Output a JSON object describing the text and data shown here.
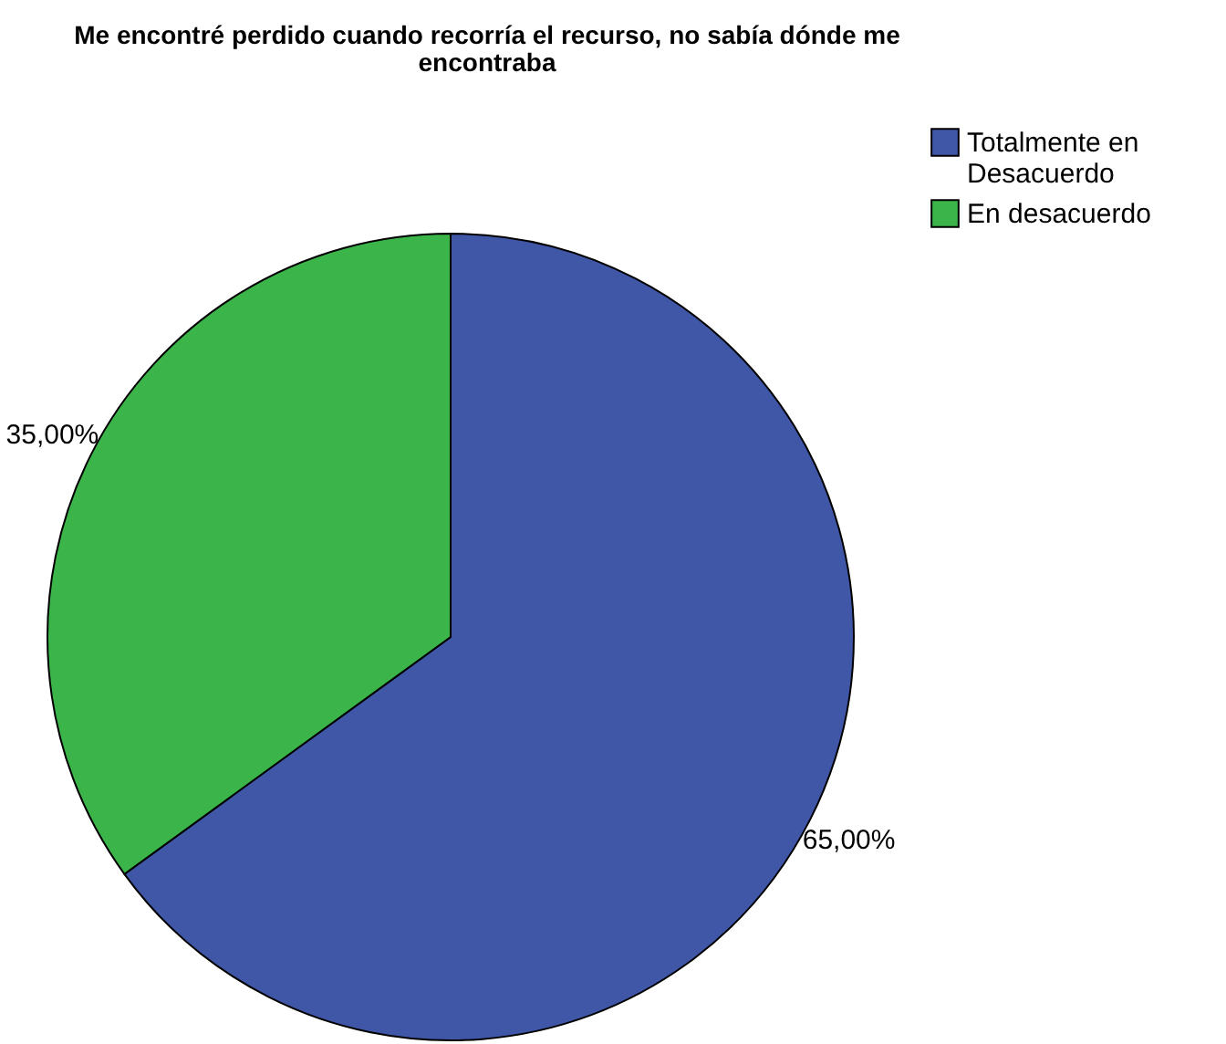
{
  "chart_data": {
    "type": "pie",
    "title": "Me encontré perdido cuando recorría el recurso, no sabía dónde me encontraba",
    "categories": [
      "Totalmente en Desacuerdo",
      "En desacuerdo"
    ],
    "values": [
      65,
      35
    ],
    "colors": [
      "#4057a8",
      "#3bb54a"
    ],
    "value_labels": [
      "65,00%",
      "35,00%"
    ],
    "legend": "top right"
  }
}
